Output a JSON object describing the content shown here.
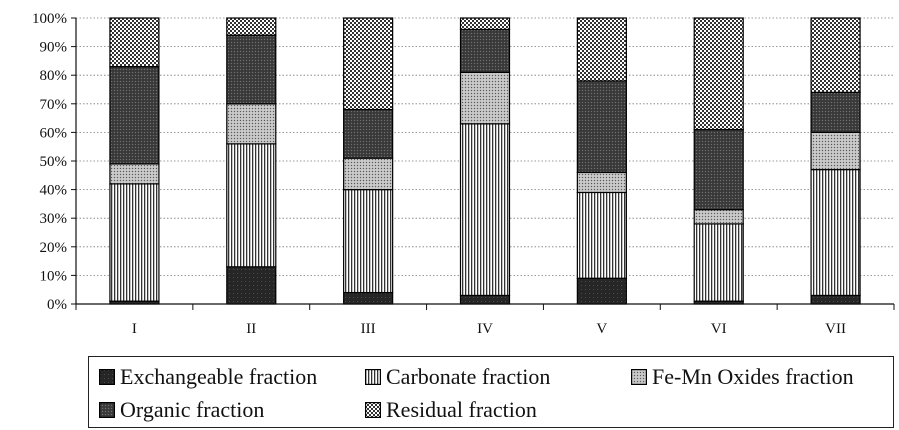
{
  "chart_data": {
    "type": "bar",
    "stacked": true,
    "title": "",
    "xlabel": "",
    "ylabel": "",
    "ylim": [
      0,
      100
    ],
    "y_tick_labels": [
      "0%",
      "10%",
      "20%",
      "30%",
      "40%",
      "50%",
      "60%",
      "70%",
      "80%",
      "90%",
      "100%"
    ],
    "categories": [
      "I",
      "II",
      "III",
      "IV",
      "V",
      "VI",
      "VII"
    ],
    "grid": "horizontal dotted",
    "legend_position": "bottom",
    "series": [
      {
        "name": "Exchangeable fraction",
        "pattern": "dark-solid",
        "values": [
          1,
          13,
          4,
          3,
          9,
          1,
          3
        ]
      },
      {
        "name": "Carbonate fraction",
        "pattern": "vertical-lines",
        "values": [
          41,
          43,
          36,
          60,
          30,
          27,
          44
        ]
      },
      {
        "name": "Fe-Mn Oxides fraction",
        "pattern": "fine-dots",
        "values": [
          7,
          14,
          11,
          18,
          7,
          5,
          13
        ]
      },
      {
        "name": "Organic fraction",
        "pattern": "dark-stipple",
        "values": [
          34,
          24,
          17,
          15,
          32,
          28,
          14
        ]
      },
      {
        "name": "Residual fraction",
        "pattern": "checker",
        "values": [
          17,
          6,
          32,
          4,
          22,
          39,
          26
        ]
      }
    ]
  },
  "colors": {
    "exchangeable": "#262626",
    "organic": "#3f3f3f",
    "grid": "#7a7a7a",
    "axis": "#111111"
  }
}
